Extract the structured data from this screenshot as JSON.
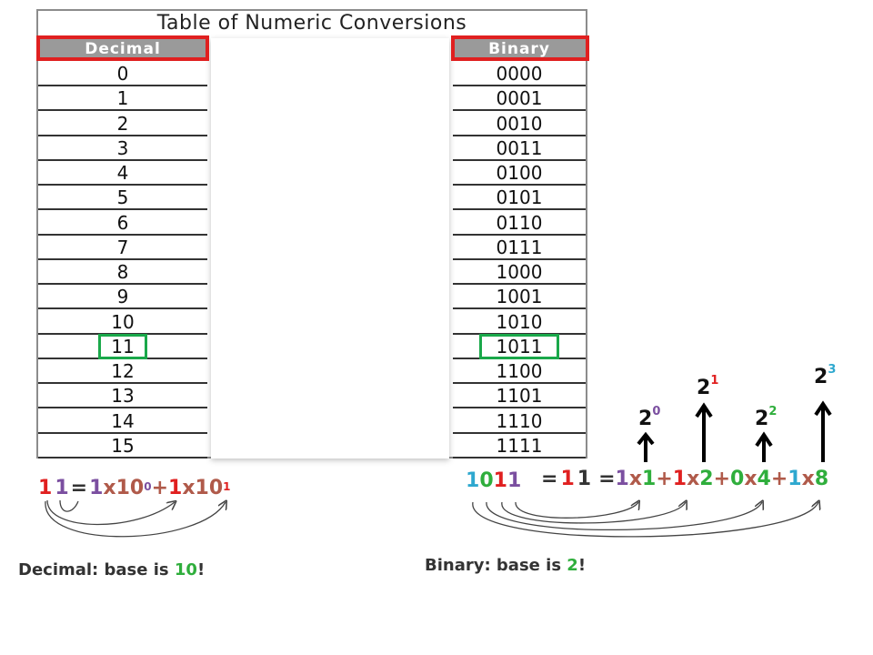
{
  "table": {
    "title": "Table of Numeric Conversions",
    "decimal_header": "Decimal",
    "binary_header": "Binary",
    "decimal_values": [
      "0",
      "1",
      "2",
      "3",
      "4",
      "5",
      "6",
      "7",
      "8",
      "9",
      "10",
      "11",
      "12",
      "13",
      "14",
      "15"
    ],
    "binary_values": [
      "0000",
      "0001",
      "0010",
      "0011",
      "0100",
      "0101",
      "0110",
      "0111",
      "1000",
      "1001",
      "1010",
      "1011",
      "1100",
      "1101",
      "1110",
      "1111"
    ],
    "highlighted_row": 11
  },
  "decimal_equation": {
    "digit1": "1",
    "digit2": "1",
    "equals": "=",
    "coef1": "1",
    "times1": "x",
    "base1": "10",
    "exp1": "0",
    "plus": "+",
    "coef2": "1",
    "times2": "x",
    "base2": "10",
    "exp2": "1"
  },
  "binary_equation": {
    "digits": [
      "1",
      "0",
      "1",
      "1"
    ],
    "equals1": "=",
    "value_d1": "1",
    "value_d2": "1",
    "equals2": "=",
    "terms": [
      {
        "coef": "1",
        "times": "x",
        "factor": "1",
        "plus": "+"
      },
      {
        "coef": "1",
        "times": "x",
        "factor": "2",
        "plus": "+"
      },
      {
        "coef": "0",
        "times": "x",
        "factor": "4",
        "plus": "+"
      },
      {
        "coef": "1",
        "times": "x",
        "factor": "8",
        "plus": ""
      }
    ]
  },
  "powers": [
    {
      "base": "2",
      "exp": "0"
    },
    {
      "base": "2",
      "exp": "1"
    },
    {
      "base": "2",
      "exp": "2"
    },
    {
      "base": "2",
      "exp": "3"
    }
  ],
  "captions": {
    "decimal_prefix": "Decimal: base is ",
    "decimal_base": "10",
    "decimal_suffix": "!",
    "binary_prefix": "Binary: base is ",
    "binary_base": "2",
    "binary_suffix": "!"
  },
  "colors": {
    "red": "#e02020",
    "purple": "#7b4fa0",
    "brown": "#b05a4a",
    "green": "#2fae3c",
    "teal": "#2ea8cf",
    "olive": "#8a8a30"
  }
}
